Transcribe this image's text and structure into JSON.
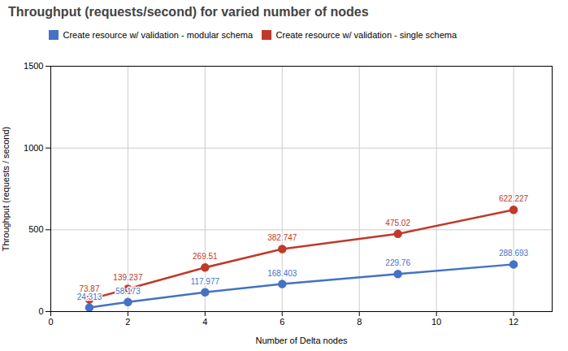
{
  "chart_data": {
    "type": "line",
    "title": "Throughput (requests/second) for varied number of nodes",
    "xlabel": "Number of Delta nodes",
    "ylabel": "Throughput (requests / second)",
    "x": [
      1,
      2,
      4,
      6,
      9,
      12
    ],
    "series": [
      {
        "name": "Create resource w/ validation - modular schema",
        "color": "#4472C4",
        "values": [
          24.313,
          58.173,
          117.977,
          168.403,
          229.76,
          288.693
        ]
      },
      {
        "name": "Create resource w/ validation - single schema",
        "color": "#C0392B",
        "values": [
          73.87,
          139.237,
          269.51,
          382.747,
          475.02,
          622.227
        ]
      }
    ],
    "xlim": [
      0,
      13
    ],
    "ylim": [
      0,
      1500
    ],
    "xticks": [
      0,
      2,
      4,
      6,
      8,
      10,
      12
    ],
    "yticks": [
      0,
      500,
      1000,
      1500
    ],
    "grid": true,
    "legend": "upper left",
    "marker": "circle",
    "data_labels": true
  }
}
